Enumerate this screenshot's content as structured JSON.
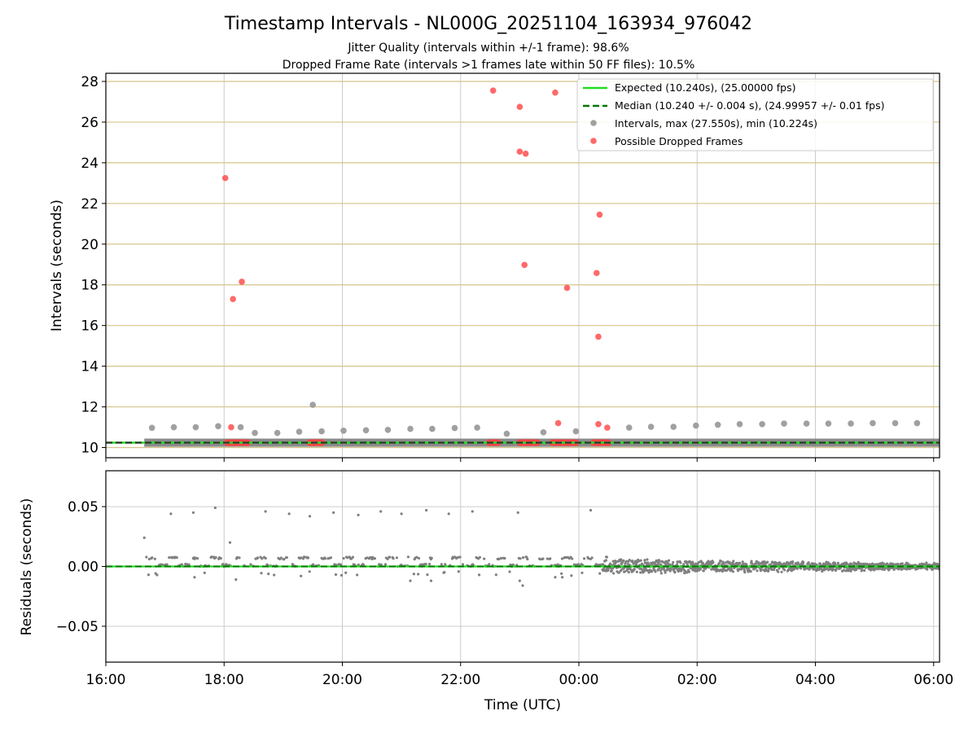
{
  "chart_data": {
    "type": "scatter",
    "title": "Timestamp Intervals - NL000G_20251104_163934_976042",
    "subtitle_lines": [
      "Jitter Quality (intervals within +/-1 frame): 98.6%",
      "Dropped Frame Rate (intervals >1 frames late within 50 FF files): 10.5%"
    ],
    "xlabel": "Time (UTC)",
    "xlim_hours": [
      16.0,
      30.1
    ],
    "xtick_hours": [
      16,
      18,
      20,
      22,
      24,
      26,
      28,
      30
    ],
    "xtick_labels": [
      "16:00",
      "18:00",
      "20:00",
      "22:00",
      "00:00",
      "02:00",
      "04:00",
      "06:00"
    ],
    "top_panel": {
      "ylabel": "Intervals (seconds)",
      "ylim": [
        9.5,
        28.4
      ],
      "yticks": [
        10,
        12,
        14,
        16,
        18,
        20,
        22,
        24,
        26,
        28
      ],
      "ytick_labels": [
        "10",
        "12",
        "14",
        "16",
        "18",
        "20",
        "22",
        "24",
        "26",
        "28"
      ],
      "grid": true,
      "legend_position": "top-right",
      "expected_value": 10.24,
      "median_value": 10.24,
      "band_start_hour": 16.65,
      "legend": [
        "Expected (10.240s), (25.00000 fps)",
        "Median (10.240 +/- 0.004 s), (24.99957 +/- 0.01 fps)",
        "Intervals, max (27.550s), min (10.224s)",
        "Possible Dropped Frames"
      ],
      "interval_points": [
        [
          16.78,
          10.97
        ],
        [
          17.15,
          11.0
        ],
        [
          17.52,
          11.0
        ],
        [
          17.9,
          11.05
        ],
        [
          18.28,
          11.0
        ],
        [
          18.52,
          10.72
        ],
        [
          18.9,
          10.72
        ],
        [
          19.27,
          10.78
        ],
        [
          19.5,
          12.1
        ],
        [
          19.65,
          10.8
        ],
        [
          20.02,
          10.83
        ],
        [
          20.4,
          10.85
        ],
        [
          20.77,
          10.87
        ],
        [
          21.15,
          10.92
        ],
        [
          21.52,
          10.92
        ],
        [
          21.9,
          10.96
        ],
        [
          22.28,
          10.98
        ],
        [
          22.78,
          10.68
        ],
        [
          23.4,
          10.75
        ],
        [
          23.95,
          10.8
        ],
        [
          24.85,
          10.98
        ],
        [
          25.22,
          11.02
        ],
        [
          25.6,
          11.02
        ],
        [
          25.98,
          11.08
        ],
        [
          26.35,
          11.12
        ],
        [
          26.72,
          11.15
        ],
        [
          27.1,
          11.15
        ],
        [
          27.47,
          11.18
        ],
        [
          27.85,
          11.18
        ],
        [
          28.22,
          11.18
        ],
        [
          28.6,
          11.18
        ],
        [
          28.97,
          11.2
        ],
        [
          29.35,
          11.2
        ],
        [
          29.72,
          11.2
        ]
      ],
      "dropped_points": [
        [
          18.02,
          23.25
        ],
        [
          18.15,
          17.3
        ],
        [
          18.3,
          18.15
        ],
        [
          18.12,
          11.0
        ],
        [
          22.55,
          27.55
        ],
        [
          23.0,
          26.75
        ],
        [
          23.0,
          24.55
        ],
        [
          23.1,
          24.45
        ],
        [
          23.08,
          18.98
        ],
        [
          23.6,
          27.45
        ],
        [
          23.65,
          11.2
        ],
        [
          23.8,
          17.85
        ],
        [
          24.3,
          18.58
        ],
        [
          24.35,
          21.45
        ],
        [
          24.33,
          15.45
        ],
        [
          24.33,
          11.15
        ],
        [
          24.48,
          10.98
        ]
      ],
      "dropped_clusters_hours": [
        [
          18.05,
          18.42
        ],
        [
          19.45,
          19.65
        ],
        [
          22.48,
          22.65
        ],
        [
          23.0,
          23.3
        ],
        [
          23.55,
          23.95
        ],
        [
          24.25,
          24.52
        ]
      ]
    },
    "bottom_panel": {
      "ylabel": "Residuals (seconds)",
      "ylim": [
        -0.08,
        0.08
      ],
      "yticks": [
        -0.05,
        0.0,
        0.05
      ],
      "ytick_labels": [
        "−0.05",
        "0.00",
        "0.05"
      ],
      "grid": true,
      "residual_outliers": [
        [
          16.65,
          0.024
        ],
        [
          17.1,
          0.044
        ],
        [
          17.48,
          0.045
        ],
        [
          17.85,
          0.049
        ],
        [
          18.1,
          0.02
        ],
        [
          18.7,
          0.046
        ],
        [
          19.1,
          0.044
        ],
        [
          19.45,
          0.042
        ],
        [
          19.85,
          0.045
        ],
        [
          20.27,
          0.043
        ],
        [
          20.65,
          0.046
        ],
        [
          21.0,
          0.044
        ],
        [
          21.42,
          0.047
        ],
        [
          21.8,
          0.044
        ],
        [
          22.2,
          0.046
        ],
        [
          22.97,
          0.045
        ],
        [
          24.2,
          0.047
        ],
        [
          17.5,
          -0.009
        ],
        [
          18.2,
          -0.011
        ],
        [
          19.3,
          -0.008
        ],
        [
          21.15,
          -0.012
        ],
        [
          21.5,
          -0.012
        ],
        [
          22.6,
          -0.007
        ],
        [
          23.05,
          -0.016
        ],
        [
          23.0,
          -0.012
        ],
        [
          23.6,
          -0.009
        ],
        [
          23.72,
          -0.009
        ]
      ]
    },
    "colors": {
      "expected_line": "#22dd22",
      "median_line": "#007700",
      "band": "#777777",
      "interval_points": "#a0a0a0",
      "dropped_points": "#ff4444",
      "residual_points": "#808080",
      "top_grid_horizontal": "#d4c48a",
      "grid_vertical": "#cccccc",
      "axis": "#000000"
    }
  }
}
